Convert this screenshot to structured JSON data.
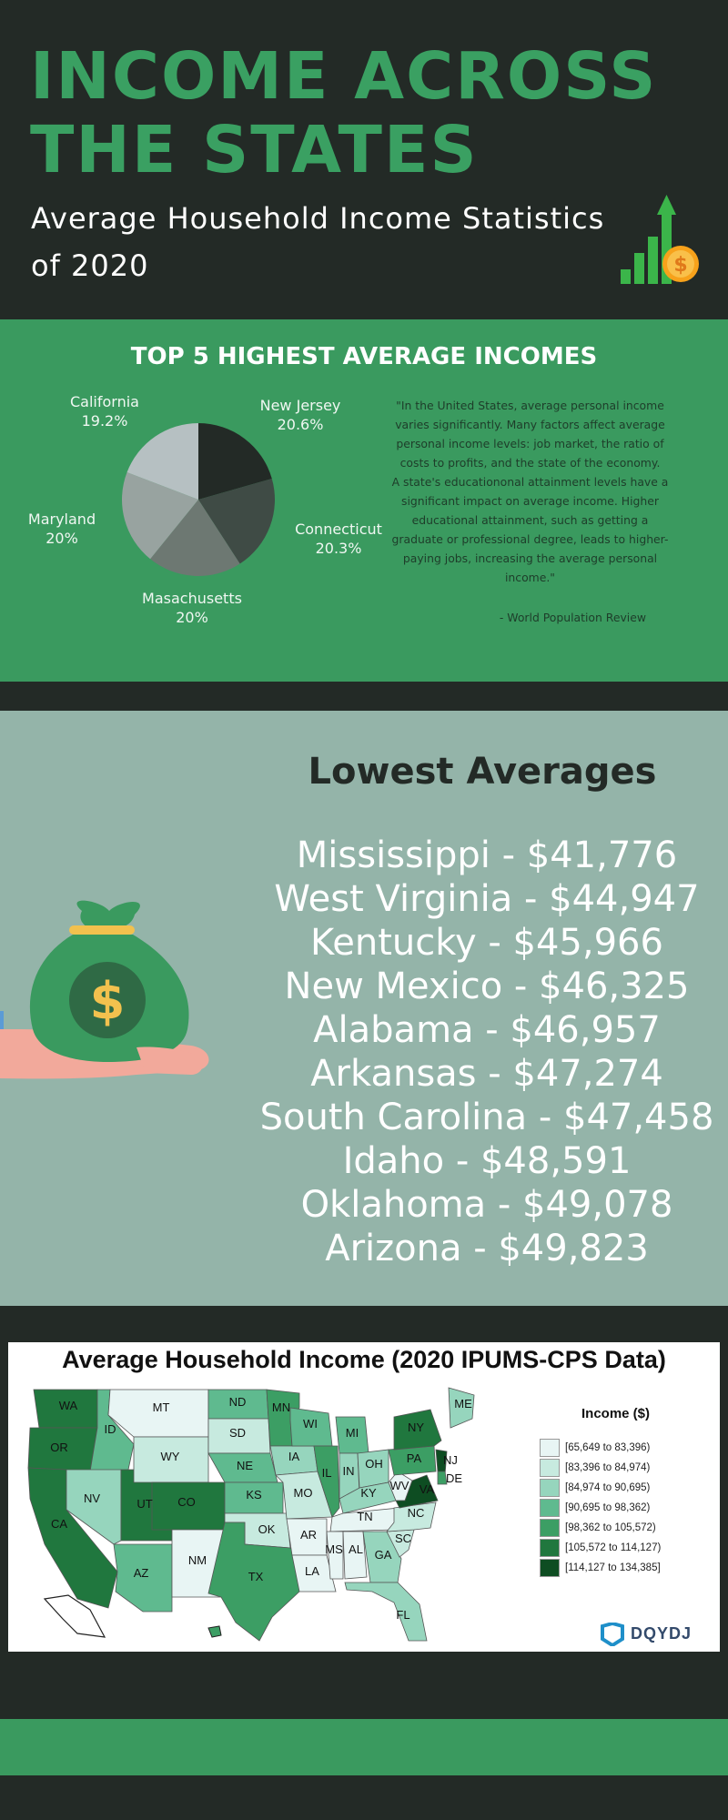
{
  "header": {
    "title_line1": "INCOME ACROSS",
    "title_line2": "THE STATES",
    "subtitle": "Average Household Income Statistics of 2020",
    "icon": "growth-bar-chart-with-dollar-coin-icon"
  },
  "top5": {
    "title": "TOP 5 HIGHEST AVERAGE INCOMES",
    "chart_data": {
      "type": "pie",
      "slices": [
        {
          "label": "New Jersey",
          "value_label": "20.6%",
          "value": 20.6,
          "color": "#232a26"
        },
        {
          "label": "Connecticut",
          "value_label": "20.3%",
          "value": 20.3,
          "color": "#3f4b45"
        },
        {
          "label": "Masachusetts",
          "value_label": "20%",
          "value": 20.0,
          "color": "#6d7872"
        },
        {
          "label": "Maryland",
          "value_label": "20%",
          "value": 20.0,
          "color": "#98a3a0"
        },
        {
          "label": "California",
          "value_label": "19.2%",
          "value": 19.2,
          "color": "#b6c0c2"
        }
      ]
    },
    "quote": "\"In the United States, average personal income varies significantly. Many factors affect average personal income levels: job market, the ratio of costs to profits, and the state of the economy.\nA state's educationonal attainment levels have a significant impact on average income. Higher educational attainment, such as getting a graduate or professional degree, leads to higher-paying jobs, increasing the average personal income.\"",
    "source": "- World Population Review"
  },
  "lowest": {
    "title": "Lowest Averages",
    "items": [
      "Mississippi - $41,776",
      "West Virginia - $44,947",
      "Kentucky - $45,966",
      "New Mexico - $46,325",
      "Alabama - $46,957",
      "Arkansas - $47,274",
      "South Carolina - $47,458",
      "Idaho - $48,591",
      "Oklahoma - $49,078",
      "Arizona - $49,823"
    ],
    "icon": "money-bag-in-hand-icon"
  },
  "map": {
    "title": "Average Household Income (2020 IPUMS-CPS Data)",
    "legend_title": "Income ($)",
    "legend": [
      {
        "label": "[65,649 to 83,396)",
        "color": "#e8f5f4"
      },
      {
        "label": "[83,396 to 84,974)",
        "color": "#c7eadf"
      },
      {
        "label": "[84,974 to 90,695)",
        "color": "#96d5bd"
      },
      {
        "label": "[90,695 to 98,362)",
        "color": "#5fba8f"
      },
      {
        "label": "[98,362 to 105,572)",
        "color": "#3c9e64"
      },
      {
        "label": "[105,572 to 114,127)",
        "color": "#20773e"
      },
      {
        "label": "[114,127 to 134,385]",
        "color": "#0e4d22"
      }
    ],
    "states": [
      {
        "abbr": "WA",
        "color": "#20773e"
      },
      {
        "abbr": "OR",
        "color": "#20773e"
      },
      {
        "abbr": "CA",
        "color": "#20773e"
      },
      {
        "abbr": "ID",
        "color": "#5fba8f"
      },
      {
        "abbr": "NV",
        "color": "#96d5bd"
      },
      {
        "abbr": "UT",
        "color": "#20773e"
      },
      {
        "abbr": "AZ",
        "color": "#5fba8f"
      },
      {
        "abbr": "MT",
        "color": "#e8f5f4"
      },
      {
        "abbr": "WY",
        "color": "#c7eadf"
      },
      {
        "abbr": "CO",
        "color": "#20773e"
      },
      {
        "abbr": "NM",
        "color": "#e8f5f4"
      },
      {
        "abbr": "ND",
        "color": "#5fba8f"
      },
      {
        "abbr": "SD",
        "color": "#c7eadf"
      },
      {
        "abbr": "NE",
        "color": "#5fba8f"
      },
      {
        "abbr": "KS",
        "color": "#5fba8f"
      },
      {
        "abbr": "OK",
        "color": "#c7eadf"
      },
      {
        "abbr": "TX",
        "color": "#3c9e64"
      },
      {
        "abbr": "MN",
        "color": "#3c9e64"
      },
      {
        "abbr": "IA",
        "color": "#96d5bd"
      },
      {
        "abbr": "MO",
        "color": "#c7eadf"
      },
      {
        "abbr": "AR",
        "color": "#e8f5f4"
      },
      {
        "abbr": "LA",
        "color": "#e8f5f4"
      },
      {
        "abbr": "WI",
        "color": "#5fba8f"
      },
      {
        "abbr": "IL",
        "color": "#3c9e64"
      },
      {
        "abbr": "MI",
        "color": "#5fba8f"
      },
      {
        "abbr": "IN",
        "color": "#96d5bd"
      },
      {
        "abbr": "OH",
        "color": "#96d5bd"
      },
      {
        "abbr": "KY",
        "color": "#96d5bd"
      },
      {
        "abbr": "TN",
        "color": "#e8f5f4"
      },
      {
        "abbr": "MS",
        "color": "#e8f5f4"
      },
      {
        "abbr": "AL",
        "color": "#e8f5f4"
      },
      {
        "abbr": "GA",
        "color": "#96d5bd"
      },
      {
        "abbr": "FL",
        "color": "#96d5bd"
      },
      {
        "abbr": "SC",
        "color": "#c7eadf"
      },
      {
        "abbr": "NC",
        "color": "#c7eadf"
      },
      {
        "abbr": "WV",
        "color": "#e8f5f4"
      },
      {
        "abbr": "VA",
        "color": "#0e4d22"
      },
      {
        "abbr": "PA",
        "color": "#3c9e64"
      },
      {
        "abbr": "NY",
        "color": "#20773e"
      },
      {
        "abbr": "NJ",
        "color": "#0e4d22"
      },
      {
        "abbr": "DE",
        "color": "#3c9e64"
      },
      {
        "abbr": "ME",
        "color": "#96d5bd"
      }
    ],
    "brand": "DQYDJ"
  }
}
